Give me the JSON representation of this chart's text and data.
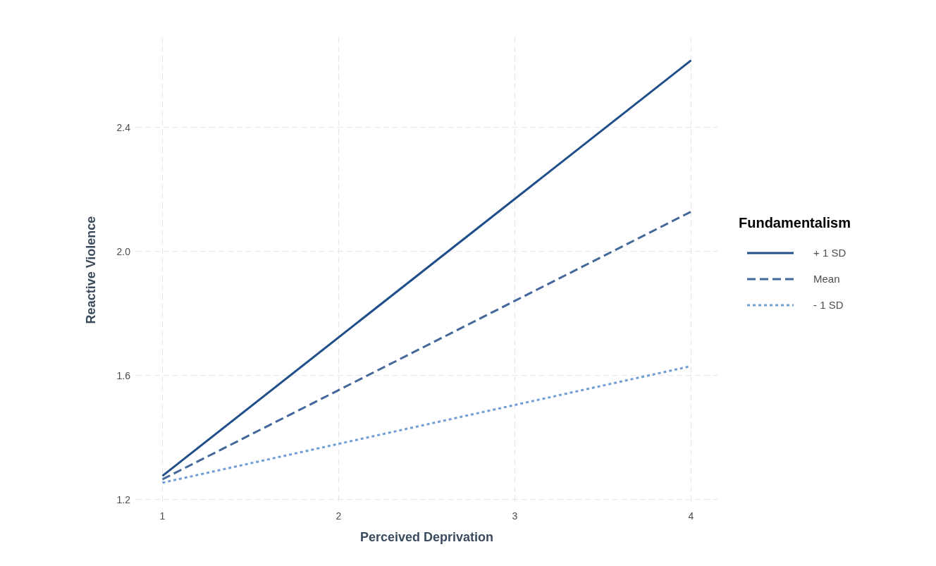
{
  "chart_data": {
    "type": "line",
    "xlabel": "Perceived Deprivation",
    "ylabel": "Reactive Violence",
    "legend_title": "Fundamentalism",
    "x": [
      1,
      4
    ],
    "series": [
      {
        "name": "+ 1 SD",
        "color": "#1f4e89",
        "values": [
          1.276,
          2.616
        ],
        "line_style": "solid"
      },
      {
        "name": "Mean",
        "color": "#44689a",
        "values": [
          1.265,
          2.128
        ],
        "line_style": "dashed"
      },
      {
        "name": "- 1 SD",
        "color": "#6f9fd4",
        "values": [
          1.254,
          1.63
        ],
        "line_style": "dotted"
      }
    ],
    "xlim": [
      0.85,
      4.15
    ],
    "ylim": [
      1.19,
      2.69
    ],
    "xticks": [
      1,
      2,
      3,
      4
    ],
    "yticks": [
      {
        "value": 1.2,
        "label": "1.2"
      },
      {
        "value": 1.6,
        "label": "1.6"
      },
      {
        "value": 2.0,
        "label": "2.0"
      },
      {
        "value": 2.4,
        "label": "2.4"
      }
    ],
    "grid": true,
    "legend": "right",
    "marker": "none"
  }
}
